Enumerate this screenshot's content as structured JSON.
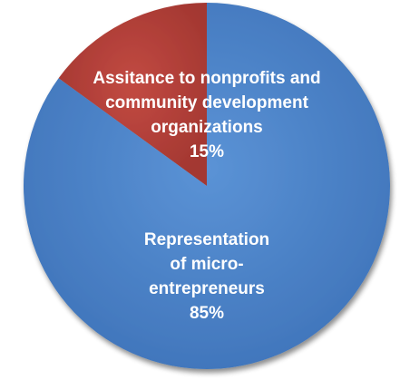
{
  "chart_data": {
    "type": "pie",
    "slices": [
      {
        "label_lines": [
          "Assitance to nonprofits and",
          "community development",
          "organizations",
          "15%"
        ],
        "value": 15,
        "color": "#b8403a"
      },
      {
        "label_lines": [
          "Representation",
          "of micro-",
          "entrepreneurs",
          "85%"
        ],
        "value": 85,
        "color": "#4f86cc"
      }
    ]
  }
}
